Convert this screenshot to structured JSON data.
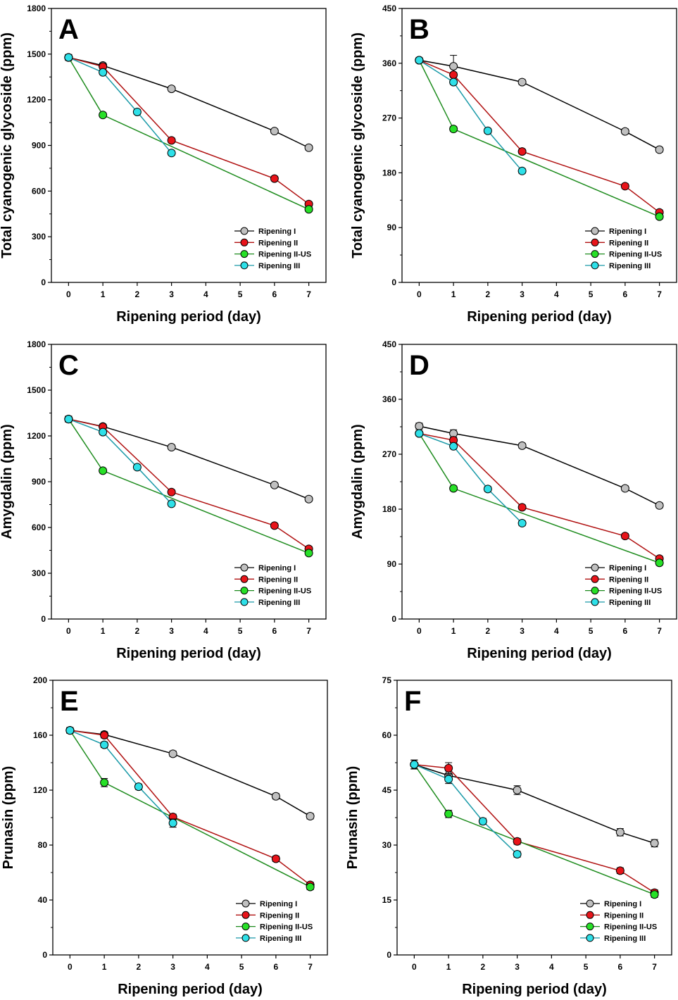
{
  "legend": [
    "Ripening I",
    "Ripening II",
    "Ripening II-US",
    "Ripening III"
  ],
  "colors": {
    "Ripening I": "#c0c0c0",
    "Ripening II": "#e8141a",
    "Ripening II-US": "#27e027",
    "Ripening III": "#2ee0e8",
    "line_Ripening I": "#000000",
    "line_Ripening II": "#b01010",
    "line_Ripening II-US": "#1e8c1e",
    "line_Ripening III": "#1a9aa8"
  },
  "chart_data": [
    {
      "panel": "A",
      "type": "line",
      "ylabel": "Total cyanogenic glycoside (ppm)",
      "xlabel": "Ripening period (day)",
      "xticks": [
        "0",
        "1",
        "2",
        "3",
        "4",
        "5",
        "6",
        "7"
      ],
      "yticks": [
        "0",
        "300",
        "600",
        "900",
        "1200",
        "1500",
        "1800"
      ],
      "ylim": [
        0,
        1800
      ],
      "xlim": [
        -0.5,
        7.5
      ],
      "series": [
        {
          "name": "Ripening I",
          "x": [
            0,
            1,
            3,
            6,
            7
          ],
          "values": [
            1478,
            1425,
            1272,
            994,
            885
          ],
          "err": [
            15,
            15,
            15,
            15,
            15
          ]
        },
        {
          "name": "Ripening II",
          "x": [
            0,
            1,
            3,
            6,
            7
          ],
          "values": [
            1478,
            1418,
            933,
            682,
            515
          ],
          "err": [
            15,
            15,
            15,
            15,
            15
          ]
        },
        {
          "name": "Ripening II-US",
          "x": [
            0,
            1,
            7
          ],
          "values": [
            1478,
            1100,
            480
          ],
          "err": [
            15,
            15,
            15
          ]
        },
        {
          "name": "Ripening III",
          "x": [
            0,
            1,
            2,
            3
          ],
          "values": [
            1478,
            1380,
            1120,
            850
          ],
          "err": [
            20,
            15,
            15,
            15
          ]
        }
      ]
    },
    {
      "panel": "B",
      "type": "line",
      "ylabel": "Total cyanogenic glycoside (ppm)",
      "xlabel": "Ripening period (day)",
      "xticks": [
        "0",
        "1",
        "2",
        "3",
        "4",
        "5",
        "6",
        "7"
      ],
      "yticks": [
        "0",
        "90",
        "180",
        "270",
        "360",
        "450"
      ],
      "ylim": [
        0,
        450
      ],
      "xlim": [
        -0.5,
        7.5
      ],
      "series": [
        {
          "name": "Ripening I",
          "x": [
            0,
            1,
            3,
            6,
            7
          ],
          "values": [
            365,
            355,
            329,
            248,
            218
          ],
          "err": [
            4,
            18,
            4,
            4,
            4
          ]
        },
        {
          "name": "Ripening II",
          "x": [
            0,
            1,
            3,
            6,
            7
          ],
          "values": [
            365,
            341,
            215,
            158,
            115
          ],
          "err": [
            4,
            4,
            4,
            4,
            4
          ]
        },
        {
          "name": "Ripening II-US",
          "x": [
            0,
            1,
            7
          ],
          "values": [
            365,
            252,
            108
          ],
          "err": [
            4,
            4,
            4
          ]
        },
        {
          "name": "Ripening III",
          "x": [
            0,
            1,
            2,
            3
          ],
          "values": [
            365,
            329,
            249,
            183
          ],
          "err": [
            4,
            4,
            4,
            4
          ]
        }
      ]
    },
    {
      "panel": "C",
      "type": "line",
      "ylabel": "Amygdalin (ppm)",
      "xlabel": "Ripening period (day)",
      "xticks": [
        "0",
        "1",
        "2",
        "3",
        "4",
        "5",
        "6",
        "7"
      ],
      "yticks": [
        "0",
        "300",
        "600",
        "900",
        "1200",
        "1500",
        "1800"
      ],
      "ylim": [
        0,
        1800
      ],
      "xlim": [
        -0.5,
        7.5
      ],
      "series": [
        {
          "name": "Ripening I",
          "x": [
            0,
            1,
            3,
            6,
            7
          ],
          "values": [
            1310,
            1262,
            1126,
            878,
            786
          ],
          "err": [
            15,
            15,
            15,
            15,
            15
          ]
        },
        {
          "name": "Ripening II",
          "x": [
            0,
            1,
            3,
            6,
            7
          ],
          "values": [
            1310,
            1260,
            832,
            612,
            460
          ],
          "err": [
            15,
            15,
            15,
            15,
            15
          ]
        },
        {
          "name": "Ripening II-US",
          "x": [
            0,
            1,
            7
          ],
          "values": [
            1310,
            972,
            432
          ],
          "err": [
            15,
            15,
            15
          ]
        },
        {
          "name": "Ripening III",
          "x": [
            0,
            1,
            2,
            3
          ],
          "values": [
            1310,
            1225,
            995,
            755
          ],
          "err": [
            20,
            15,
            15,
            15
          ]
        }
      ]
    },
    {
      "panel": "D",
      "type": "line",
      "ylabel": "Amygdalin (ppm)",
      "xlabel": "Ripening period (day)",
      "xticks": [
        "0",
        "1",
        "2",
        "3",
        "4",
        "5",
        "6",
        "7"
      ],
      "yticks": [
        "0",
        "90",
        "180",
        "270",
        "360",
        "450"
      ],
      "ylim": [
        0,
        450
      ],
      "xlim": [
        -0.5,
        7.5
      ],
      "series": [
        {
          "name": "Ripening I",
          "x": [
            0,
            1,
            3,
            6,
            7
          ],
          "values": [
            316,
            304,
            284,
            214,
            186
          ],
          "err": [
            5,
            6,
            4,
            4,
            4
          ]
        },
        {
          "name": "Ripening II",
          "x": [
            0,
            1,
            3,
            6,
            7
          ],
          "values": [
            304,
            293,
            183,
            136,
            99
          ],
          "err": [
            4,
            4,
            4,
            4,
            4
          ]
        },
        {
          "name": "Ripening II-US",
          "x": [
            0,
            1,
            7
          ],
          "values": [
            304,
            214,
            92
          ],
          "err": [
            4,
            4,
            4
          ]
        },
        {
          "name": "Ripening III",
          "x": [
            0,
            1,
            2,
            3
          ],
          "values": [
            304,
            283,
            213,
            157
          ],
          "err": [
            4,
            4,
            4,
            4
          ]
        }
      ]
    },
    {
      "panel": "E",
      "type": "line",
      "ylabel": "Prunasin (ppm)",
      "xlabel": "Ripening period (day)",
      "xticks": [
        "0",
        "1",
        "2",
        "3",
        "4",
        "5",
        "6",
        "7"
      ],
      "yticks": [
        "0",
        "40",
        "80",
        "120",
        "160",
        "200"
      ],
      "ylim": [
        0,
        200
      ],
      "xlim": [
        -0.5,
        7.5
      ],
      "series": [
        {
          "name": "Ripening I",
          "x": [
            0,
            1,
            3,
            6,
            7
          ],
          "values": [
            163.5,
            160.5,
            146.5,
            115.5,
            101
          ],
          "err": [
            2,
            2,
            2,
            2,
            2
          ]
        },
        {
          "name": "Ripening II",
          "x": [
            0,
            1,
            3,
            6,
            7
          ],
          "values": [
            163.5,
            160,
            100.5,
            70,
            51
          ],
          "err": [
            2,
            2,
            2,
            2,
            2
          ]
        },
        {
          "name": "Ripening II-US",
          "x": [
            0,
            1,
            7
          ],
          "values": [
            163.5,
            125.5,
            49.5
          ],
          "err": [
            2,
            3,
            2
          ]
        },
        {
          "name": "Ripening III",
          "x": [
            0,
            1,
            2,
            3
          ],
          "values": [
            163.5,
            153,
            122.5,
            96
          ],
          "err": [
            2,
            2,
            2,
            3
          ]
        }
      ]
    },
    {
      "panel": "F",
      "type": "line",
      "ylabel": "Prunasin (ppm)",
      "xlabel": "Ripening period (day)",
      "xticks": [
        "0",
        "1",
        "2",
        "3",
        "4",
        "5",
        "6",
        "7"
      ],
      "yticks": [
        "0",
        "15",
        "30",
        "45",
        "60",
        "75"
      ],
      "ylim": [
        0,
        75
      ],
      "xlim": [
        -0.5,
        7.5
      ],
      "series": [
        {
          "name": "Ripening I",
          "x": [
            0,
            1,
            3,
            6,
            7
          ],
          "values": [
            52,
            49,
            45,
            33.5,
            30.5
          ],
          "err": [
            1.2,
            1.2,
            1.2,
            1,
            1
          ]
        },
        {
          "name": "Ripening II",
          "x": [
            0,
            1,
            3,
            6,
            7
          ],
          "values": [
            52,
            51,
            31,
            23,
            17
          ],
          "err": [
            1.2,
            1.5,
            0.8,
            0.8,
            0.8
          ]
        },
        {
          "name": "Ripening II-US",
          "x": [
            0,
            1,
            7
          ],
          "values": [
            52,
            38.5,
            16.5
          ],
          "err": [
            1.2,
            1,
            0.8
          ]
        },
        {
          "name": "Ripening III",
          "x": [
            0,
            1,
            2,
            3
          ],
          "values": [
            52,
            48,
            36.5,
            27.5
          ],
          "err": [
            1.2,
            1.2,
            0.8,
            0.8
          ]
        }
      ]
    }
  ]
}
